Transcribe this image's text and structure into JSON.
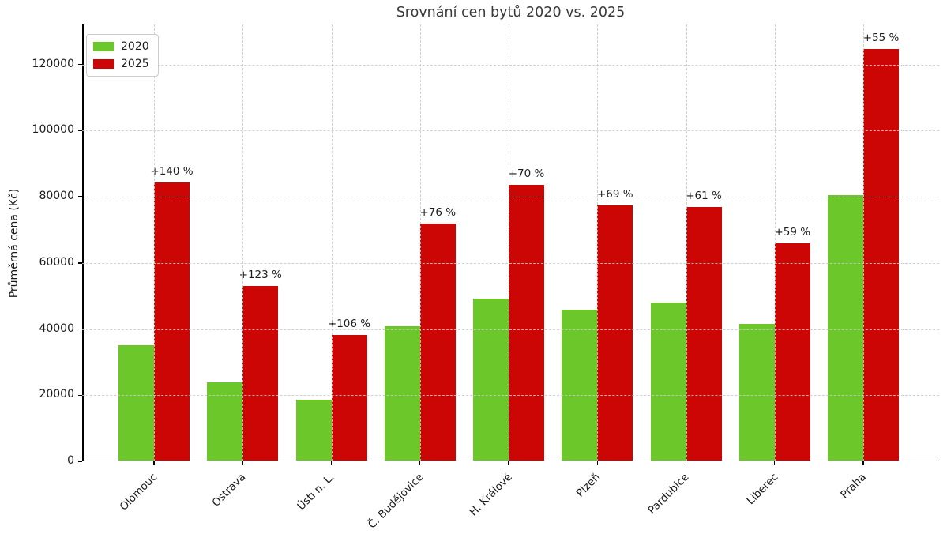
{
  "title": "Srovnání cen bytů 2020 vs. 2025",
  "chart_data": {
    "type": "bar",
    "title": "Srovnání cen bytů 2020 vs. 2025",
    "xlabel": "",
    "ylabel": "Průměrná cena (Kč)",
    "categories": [
      "Olomouc",
      "Ostrava",
      "Ústí n. L.",
      "Č. Budějovice",
      "H. Králové",
      "Plzeň",
      "Pardubice",
      "Liberec",
      "Praha"
    ],
    "series": [
      {
        "name": "2020",
        "color": "#6cc72b",
        "values": [
          35000,
          23700,
          18400,
          40700,
          49000,
          45600,
          47700,
          41400,
          80300
        ]
      },
      {
        "name": "2025",
        "color": "#cc0605",
        "values": [
          84000,
          52900,
          37900,
          71600,
          83300,
          77100,
          76800,
          65800,
          124500
        ]
      }
    ],
    "bar_annotations_2025": [
      "+140 %",
      "+123 %",
      "+106 %",
      "+76 %",
      "+70 %",
      "+69 %",
      "+61 %",
      "+59 %",
      "+55 %"
    ],
    "yticks": [
      0,
      20000,
      40000,
      60000,
      80000,
      100000,
      120000
    ],
    "ytick_labels": [
      "0",
      "20000",
      "40000",
      "60000",
      "80000",
      "100000",
      "120000"
    ],
    "ylim": [
      0,
      132200
    ],
    "grid": "both, dashed, light-gray, drawn above bars",
    "legend_position": "upper-left",
    "colors": {
      "grid": "#c9c9c9",
      "axis": "#000000",
      "title_text": "#3a3a3a",
      "tick_text": "#1a1a1a"
    }
  },
  "legend": {
    "items": [
      {
        "label": "2020",
        "color": "#6cc72b"
      },
      {
        "label": "2025",
        "color": "#cc0605"
      }
    ]
  }
}
